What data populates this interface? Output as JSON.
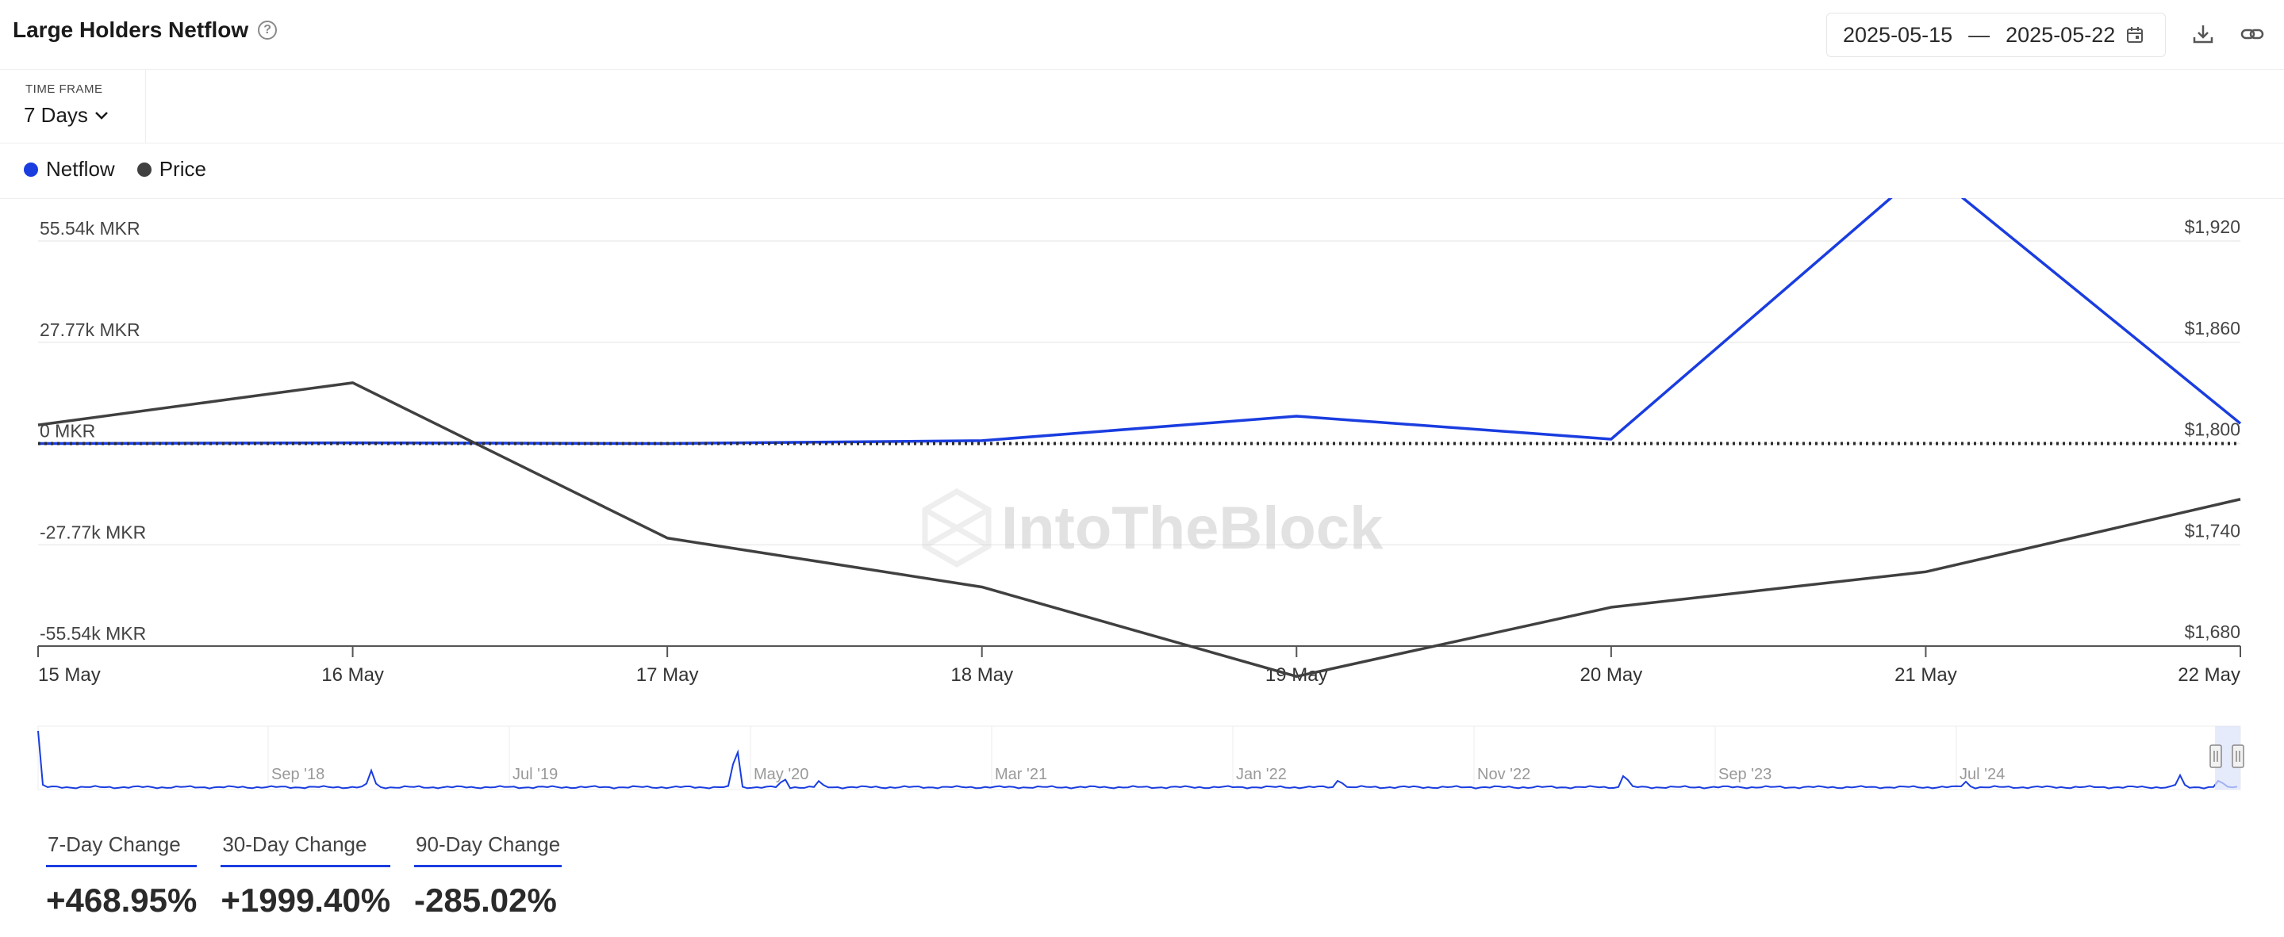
{
  "header": {
    "title": "Large Holders Netflow",
    "date_start": "2025-05-15",
    "date_separator": "—",
    "date_end": "2025-05-22",
    "icons": [
      "help-icon",
      "calendar-icon",
      "download-icon",
      "link-icon"
    ]
  },
  "timeframe": {
    "label": "TIME FRAME",
    "value": "7 Days"
  },
  "legend": [
    {
      "name": "Netflow",
      "color": "#1a3de0"
    },
    {
      "name": "Price",
      "color": "#404040"
    }
  ],
  "watermark": "IntoTheBlock",
  "chart_data": {
    "type": "line",
    "x": [
      "15 May",
      "16 May",
      "17 May",
      "18 May",
      "19 May",
      "20 May",
      "21 May",
      "22 May"
    ],
    "series": [
      {
        "name": "Netflow",
        "axis": "left",
        "color": "#1a3de0",
        "values": [
          0,
          200,
          0,
          800,
          7500,
          1200,
          75600,
          5500
        ]
      },
      {
        "name": "Price",
        "axis": "right",
        "color": "#404040",
        "values": [
          1811,
          1836,
          1744,
          1715,
          1662,
          1703,
          1724,
          1767
        ]
      }
    ],
    "y_left": {
      "ticks": [
        "55.54k MKR",
        "27.77k MKR",
        "0 MKR",
        "-27.77k MKR",
        "-55.54k MKR"
      ],
      "range": [
        -55540,
        55540
      ]
    },
    "y_right": {
      "ticks": [
        "$1,920",
        "$1,860",
        "$1,800",
        "$1,740",
        "$1,680"
      ],
      "range": [
        1680,
        1920
      ]
    },
    "zero_line": "dotted",
    "grid": true,
    "navigator_labels": [
      "Sep '18",
      "Jul '19",
      "May '20",
      "Mar '21",
      "Jan '22",
      "Nov '22",
      "Sep '23",
      "Jul '24"
    ]
  },
  "changes": [
    {
      "label": "7-Day Change",
      "value": "+468.95%"
    },
    {
      "label": "30-Day Change",
      "value": "+1999.40%"
    },
    {
      "label": "90-Day Change",
      "value": "-285.02%"
    }
  ]
}
